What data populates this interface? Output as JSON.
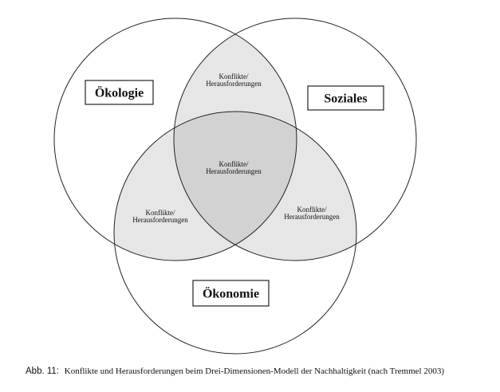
{
  "diagram": {
    "circles": {
      "oekologie": "Ökologie",
      "soziales": "Soziales",
      "oekonomie": "Ökonomie"
    },
    "overlaps": {
      "top": [
        "Konflikte/",
        "Herausforderungen"
      ],
      "center": [
        "Konflikte/",
        "Herausforderungen"
      ],
      "left": [
        "Konflikte/",
        "Herausforderungen"
      ],
      "right": [
        "Konflikte/",
        "Herausforderungen"
      ]
    },
    "colors": {
      "stroke": "#222222",
      "pair_overlap": "#e6e6e6",
      "triple_overlap": "#d2d2d2",
      "background": "#ffffff"
    }
  },
  "caption": {
    "label": "Abb. 11:",
    "text": "Konflikte und Herausforderungen beim Drei-Dimensionen-Modell der Nachhaltigkeit (nach Tremmel 2003)"
  }
}
